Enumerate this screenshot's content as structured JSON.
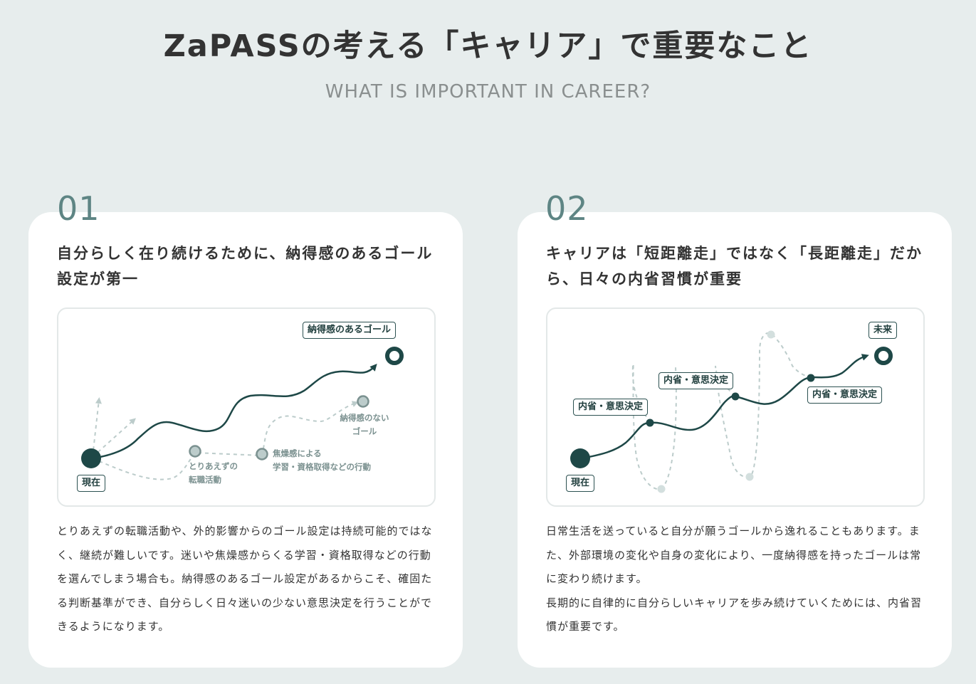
{
  "header": {
    "title": "ZaPASSの考える「キャリア」で重要なこと",
    "subtitle": "WHAT IS IMPORTANT IN CAREER?"
  },
  "colors": {
    "background": "#e7eded",
    "card": "#ffffff",
    "accent_dark": "#1e4847",
    "number": "#5e8584",
    "muted": "#bccccb"
  },
  "cards": [
    {
      "number": "01",
      "heading": "自分らしく在り続けるために、納得感のあるゴール設定が第一",
      "diagram": {
        "start_label": "現在",
        "goal_label": "納得感のあるゴール",
        "job_change_label_line1": "とりあえずの",
        "job_change_label_line2": "転職活動",
        "anxiety_label_line1": "焦燥感による",
        "anxiety_label_line2": "学習・資格取得などの行動",
        "unsatisfied_goal_line1": "納得感のない",
        "unsatisfied_goal_line2": "ゴール"
      },
      "paragraphs": [
        "とりあえずの転職活動や、外的影響からのゴール設定は持続可能的ではなく、継続が難しいです。迷いや焦燥感からくる学習・資格取得などの行動を選んでしまう場合も。納得感のあるゴール設定があるからこそ、確固たる判断基準ができ、自分らしく日々迷いの少ない意思決定を行うことができるようになります。"
      ]
    },
    {
      "number": "02",
      "heading": "キャリアは「短距離走」ではなく「長距離走」だから、日々の内省習慣が重要",
      "diagram": {
        "start_label": "現在",
        "future_label": "未来",
        "reflection_label_1": "内省・意思決定",
        "reflection_label_2": "内省・意思決定",
        "reflection_label_3": "内省・意思決定"
      },
      "paragraphs": [
        "日常生活を送っていると自分が願うゴールから逸れることもあります。また、外部環境の変化や自身の変化により、一度納得感を持ったゴールは常に変わり続けます。",
        "長期的に自律的に自分らしいキャリアを歩み続けていくためには、内省習慣が重要です。"
      ]
    }
  ]
}
